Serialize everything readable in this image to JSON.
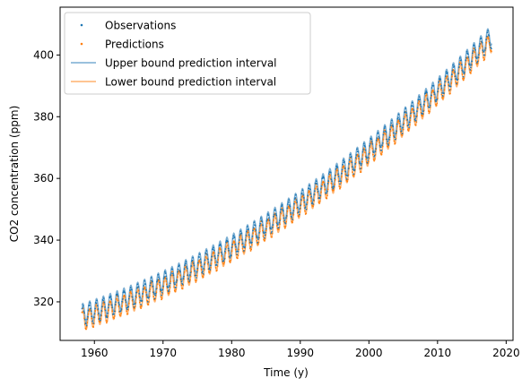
{
  "chart_data": {
    "type": "scatter",
    "xlabel": "Time (y)",
    "ylabel": "CO2 concentration (ppm)",
    "xlim": [
      1955.0,
      2021.0
    ],
    "ylim": [
      307.5,
      415.5
    ],
    "xticks": [
      1960,
      1970,
      1980,
      1990,
      2000,
      2010,
      2020
    ],
    "yticks": [
      320,
      340,
      360,
      380,
      400
    ],
    "grid": false,
    "legend_position": "upper-left",
    "series": [
      {
        "name": "Observations",
        "kind": "points",
        "color": "#1f77b4",
        "x_start": 1958.2,
        "x_end": 2017.9,
        "x_step": 0.0833,
        "trend_at_start": 315.0,
        "trend_slope": 0.75,
        "trend_curvature": 0.0128,
        "seasonal_amplitude": 3.2
      },
      {
        "name": "Predictions",
        "kind": "points",
        "color": "#ff7f0e",
        "x_start": 1958.2,
        "x_end": 2017.9,
        "x_step": 0.0833,
        "trend_at_start": 315.0,
        "trend_slope": 0.75,
        "trend_curvature": 0.0128,
        "seasonal_amplitude": 3.2
      },
      {
        "name": "Upper bound prediction interval",
        "kind": "line",
        "color": "#1f77b4",
        "offset": 1.2
      },
      {
        "name": "Lower bound prediction interval",
        "kind": "line",
        "color": "#ff7f0e",
        "offset": -1.2
      }
    ]
  }
}
